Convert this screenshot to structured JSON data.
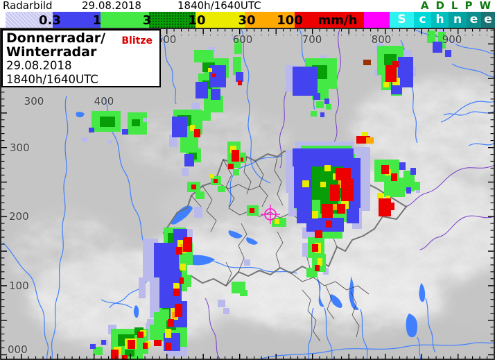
{
  "header": {
    "product_label": "Radarbild",
    "date": "29.08.2018",
    "time": "1840h/1640UTC",
    "station_letters": [
      "A",
      "D",
      "L",
      "P",
      "W"
    ],
    "station_color": "#0e7c0e"
  },
  "scale": {
    "segments": [
      {
        "label": "0.3",
        "color": "#c9c9f2"
      },
      {
        "label": "1",
        "color": "#4343ef"
      },
      {
        "label": "3",
        "color": "#45e945"
      },
      {
        "label": "10",
        "color": "#089e08"
      },
      {
        "label": "30",
        "color": "#ebeb00"
      },
      {
        "label": "100",
        "color": "#ffa800"
      },
      {
        "label": "mm/h",
        "color": "#ec0000"
      },
      {
        "label": "",
        "color": "#ff00ff"
      }
    ],
    "snow_letters": [
      {
        "char": "S",
        "color": "#2ef2f2"
      },
      {
        "char": "c",
        "color": "#00d8d8"
      },
      {
        "char": "h",
        "color": "#00bfbf"
      },
      {
        "char": "n",
        "color": "#00a3a3"
      },
      {
        "char": "e",
        "color": "#0d8f8f"
      },
      {
        "char": "e",
        "color": "#1d7373"
      }
    ]
  },
  "info_box": {
    "title_line1": "Donnerradar/",
    "title_line2": "Winterradar",
    "date": "29.08.2018",
    "time": "1840h/1640UTC",
    "lightning_label": "Blitze",
    "lightning_color": "#dd0000"
  },
  "map": {
    "x_labels_top": [
      "500",
      "600",
      "700",
      "800",
      "900"
    ],
    "x_labels_inner": [
      "300",
      "400"
    ],
    "y_labels": [
      "300",
      "200",
      "100",
      "000"
    ],
    "river_color": "#4080ff",
    "marker_color": "#ff20d0"
  }
}
